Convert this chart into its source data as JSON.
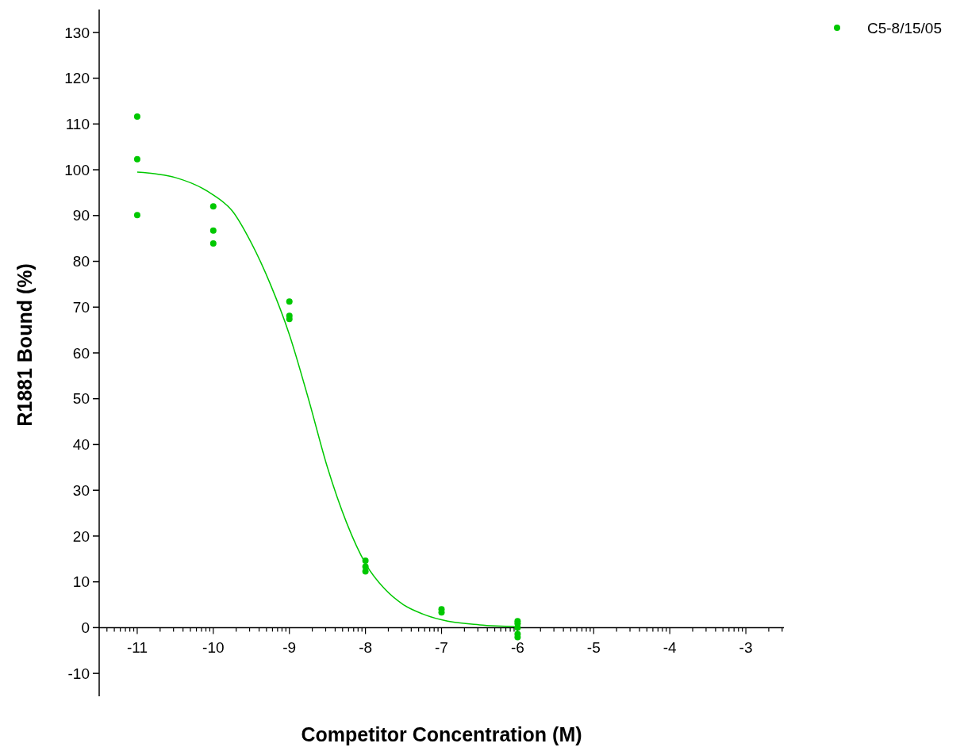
{
  "chart_data": {
    "type": "scatter",
    "xlabel": "Competitor Concentration (M)",
    "ylabel": "R1881 Bound (%)",
    "xlim": [
      -11.5,
      -2.5
    ],
    "ylim": [
      -15,
      135
    ],
    "xticks": [
      {
        "value": -11.398,
        "label": null
      },
      {
        "value": -11.301,
        "label": null
      },
      {
        "value": -11.222,
        "label": null
      },
      {
        "value": -11.155,
        "label": null
      },
      {
        "value": -11.097,
        "label": null
      },
      {
        "value": -11.046,
        "label": null
      },
      -11,
      {
        "value": -10.699,
        "label": null
      },
      {
        "value": -10.523,
        "label": null
      },
      {
        "value": -10.398,
        "label": null
      },
      {
        "value": -10.301,
        "label": null
      },
      {
        "value": -10.222,
        "label": null
      },
      {
        "value": -10.155,
        "label": null
      },
      {
        "value": -10.097,
        "label": null
      },
      {
        "value": -10.046,
        "label": null
      },
      -10,
      {
        "value": -9.699,
        "label": null
      },
      {
        "value": -9.523,
        "label": null
      },
      {
        "value": -9.398,
        "label": null
      },
      {
        "value": -9.301,
        "label": null
      },
      {
        "value": -9.222,
        "label": null
      },
      {
        "value": -9.155,
        "label": null
      },
      {
        "value": -9.097,
        "label": null
      },
      {
        "value": -9.046,
        "label": null
      },
      -9,
      {
        "value": -8.699,
        "label": null
      },
      {
        "value": -8.523,
        "label": null
      },
      {
        "value": -8.398,
        "label": null
      },
      {
        "value": -8.301,
        "label": null
      },
      {
        "value": -8.222,
        "label": null
      },
      {
        "value": -8.155,
        "label": null
      },
      {
        "value": -8.097,
        "label": null
      },
      {
        "value": -8.046,
        "label": null
      },
      -8,
      {
        "value": -7.699,
        "label": null
      },
      {
        "value": -7.523,
        "label": null
      },
      {
        "value": -7.398,
        "label": null
      },
      {
        "value": -7.301,
        "label": null
      },
      {
        "value": -7.222,
        "label": null
      },
      {
        "value": -7.155,
        "label": null
      },
      {
        "value": -7.097,
        "label": null
      },
      {
        "value": -7.046,
        "label": null
      },
      -7,
      {
        "value": -6.699,
        "label": null
      },
      {
        "value": -6.523,
        "label": null
      },
      {
        "value": -6.398,
        "label": null
      },
      {
        "value": -6.301,
        "label": null
      },
      {
        "value": -6.222,
        "label": null
      },
      {
        "value": -6.155,
        "label": null
      },
      {
        "value": -6.097,
        "label": null
      },
      {
        "value": -6.046,
        "label": null
      },
      -6,
      {
        "value": -5.699,
        "label": null
      },
      {
        "value": -5.523,
        "label": null
      },
      {
        "value": -5.398,
        "label": null
      },
      {
        "value": -5.301,
        "label": null
      },
      {
        "value": -5.222,
        "label": null
      },
      {
        "value": -5.155,
        "label": null
      },
      {
        "value": -5.097,
        "label": null
      },
      {
        "value": -5.046,
        "label": null
      },
      -5,
      {
        "value": -4.699,
        "label": null
      },
      {
        "value": -4.523,
        "label": null
      },
      {
        "value": -4.398,
        "label": null
      },
      {
        "value": -4.301,
        "label": null
      },
      {
        "value": -4.222,
        "label": null
      },
      {
        "value": -4.155,
        "label": null
      },
      {
        "value": -4.097,
        "label": null
      },
      {
        "value": -4.046,
        "label": null
      },
      -4,
      {
        "value": -3.699,
        "label": null
      },
      {
        "value": -3.523,
        "label": null
      },
      {
        "value": -3.398,
        "label": null
      },
      {
        "value": -3.301,
        "label": null
      },
      {
        "value": -3.222,
        "label": null
      },
      {
        "value": -3.155,
        "label": null
      },
      {
        "value": -3.097,
        "label": null
      },
      {
        "value": -3.046,
        "label": null
      },
      -3,
      {
        "value": -2.699,
        "label": null
      },
      {
        "value": -2.523,
        "label": null
      }
    ],
    "yticks": [
      -10,
      0,
      10,
      20,
      30,
      40,
      50,
      60,
      70,
      80,
      90,
      100,
      110,
      120,
      130
    ],
    "grid": false,
    "legend": "top right",
    "marker": "circle",
    "series": [
      {
        "name": "C5-8/15/05",
        "color": "#00c800",
        "x": [
          -11,
          -11,
          -11,
          -10,
          -10,
          -10,
          -9,
          -9,
          -9,
          -8,
          -8,
          -8,
          -7,
          -7,
          -6,
          -6,
          -6,
          -6,
          -6
        ],
        "values": [
          111.6,
          102.3,
          90.1,
          92.0,
          86.7,
          83.9,
          71.2,
          68.1,
          67.4,
          14.6,
          13.3,
          12.3,
          4.0,
          3.3,
          1.4,
          0.9,
          0,
          -1.4,
          -2.1
        ]
      },
      {
        "type": "line",
        "color": "#00c800",
        "marker": "none",
        "x": [
          -11,
          -10.5,
          -10,
          -9.75,
          -9.5,
          -9.25,
          -9,
          -8.75,
          -8.5,
          -8.25,
          -8,
          -7.75,
          -7.5,
          -7.25,
          -7,
          -6.5,
          -6
        ],
        "values": [
          99.5,
          98.3,
          94.5,
          91,
          84,
          75,
          64,
          50,
          35,
          23,
          14,
          8.5,
          5,
          3,
          1.7,
          0.6,
          0.2
        ]
      }
    ]
  }
}
